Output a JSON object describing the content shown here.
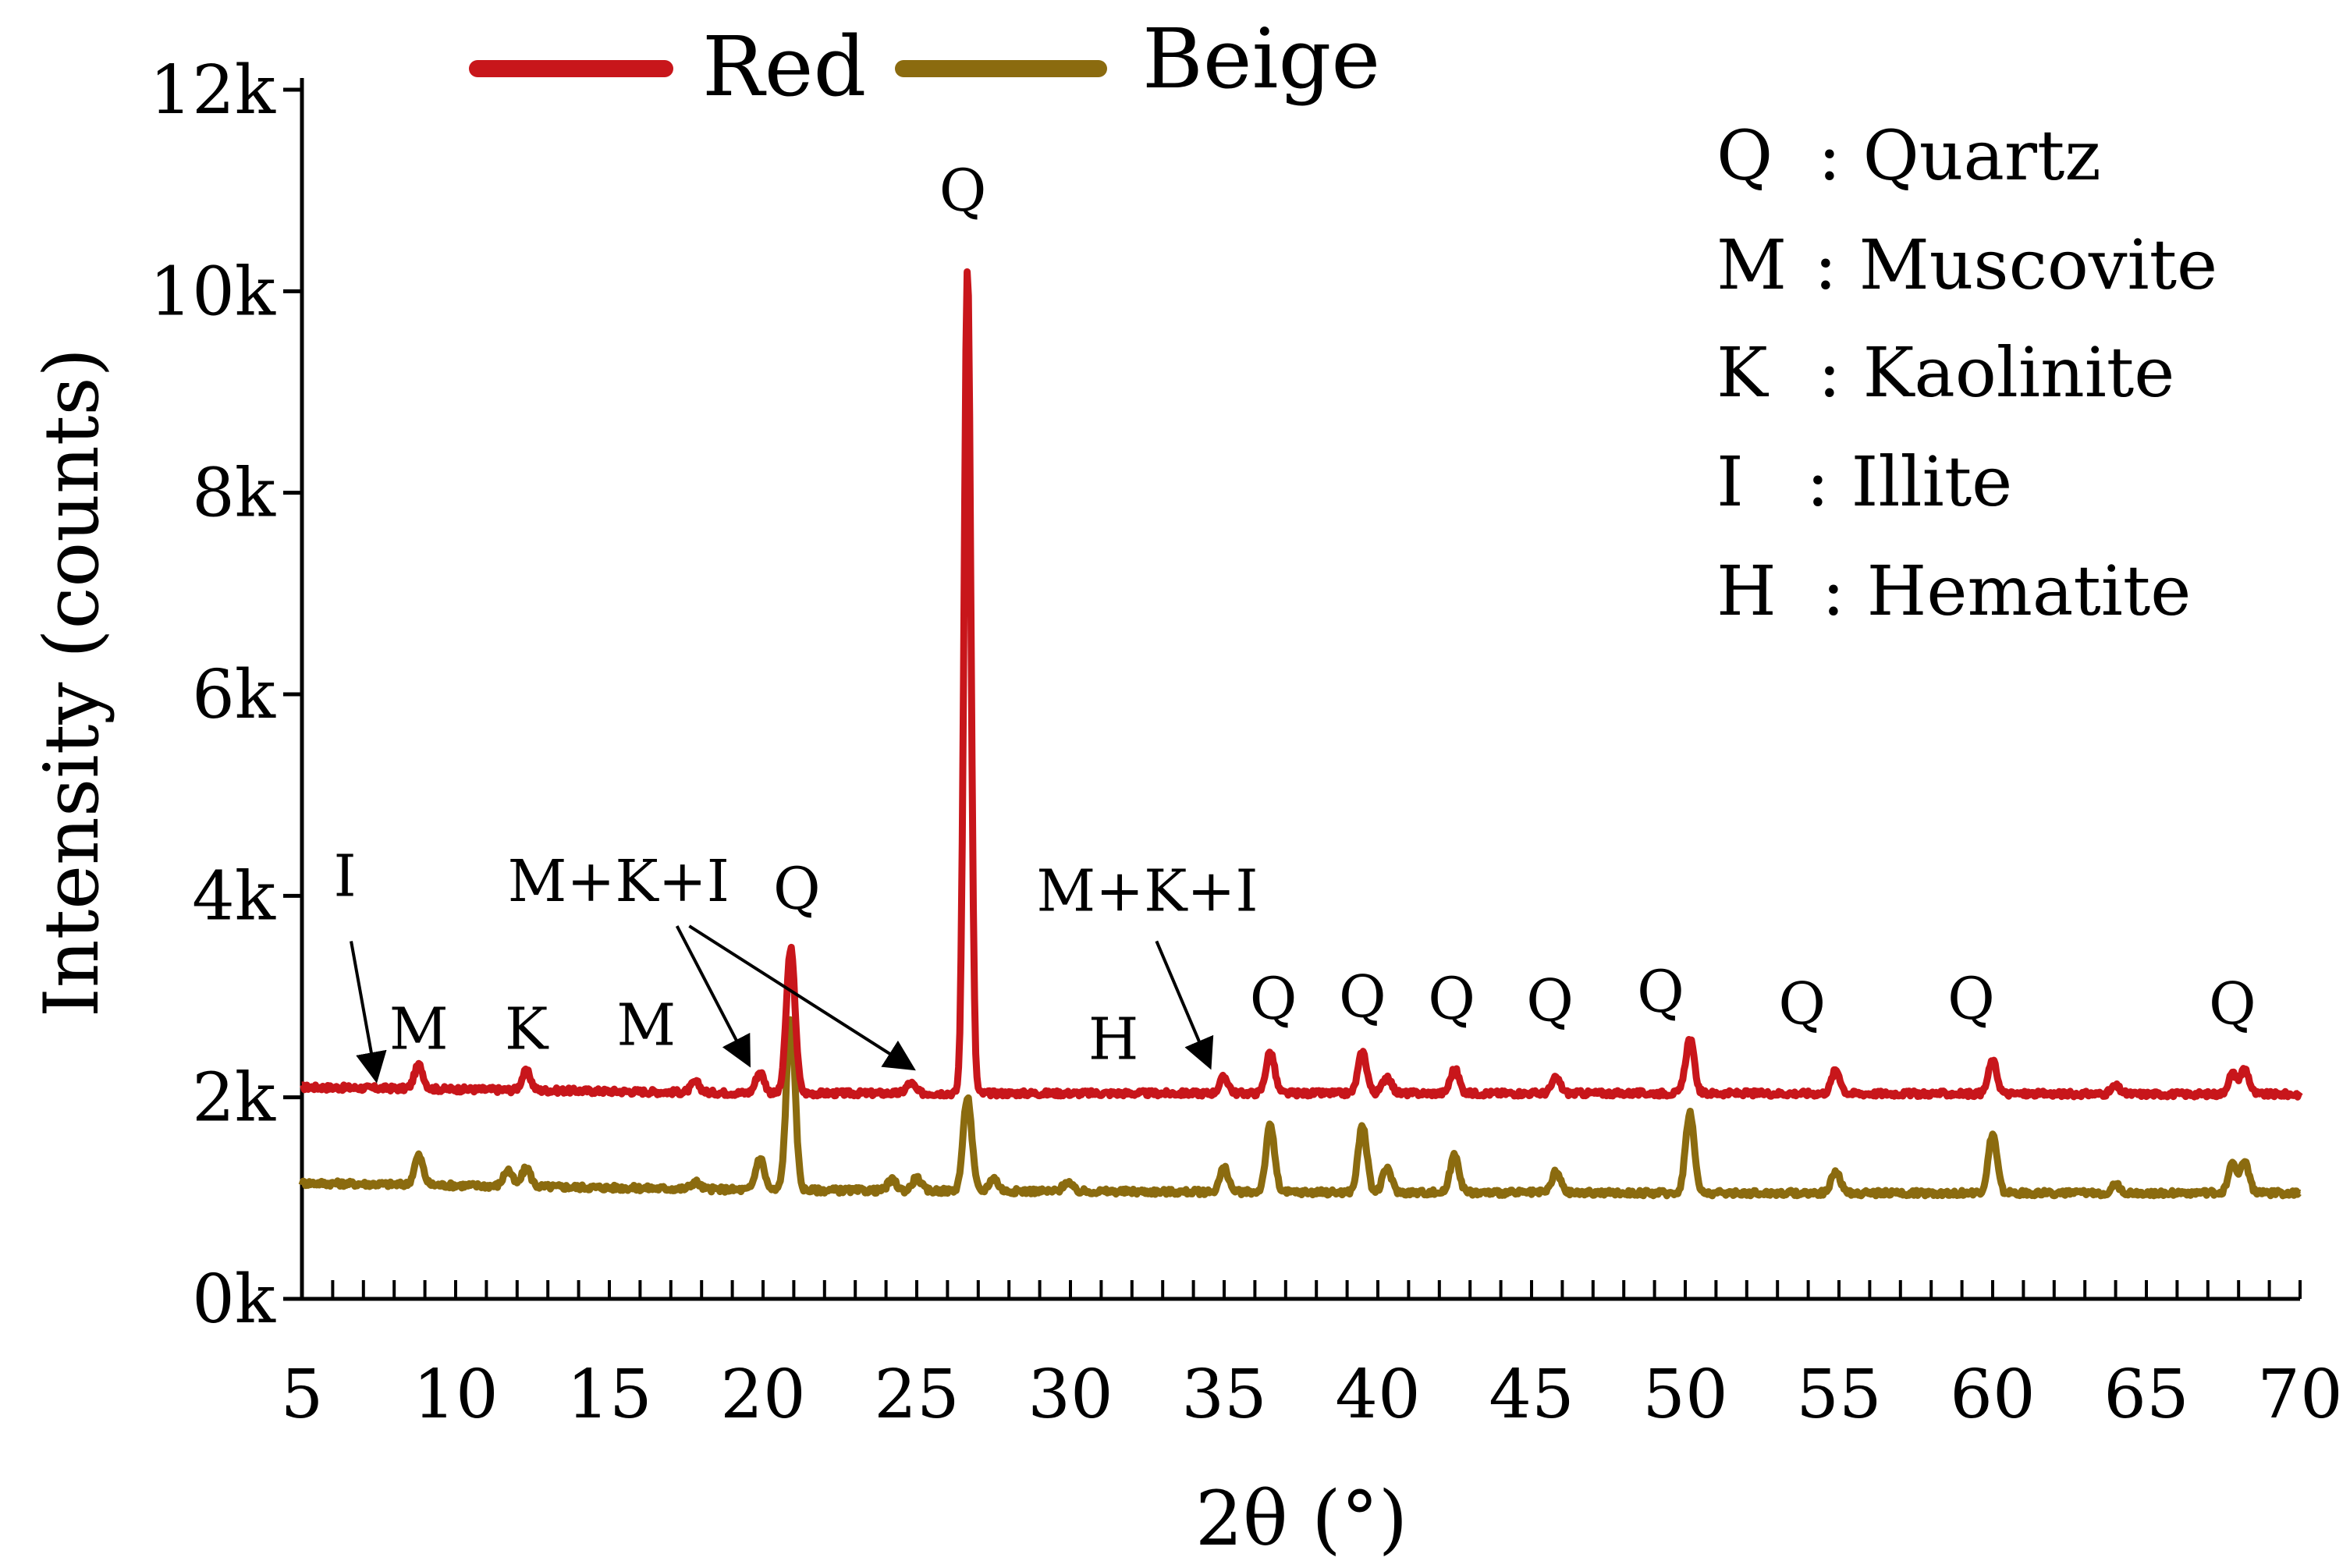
{
  "chart_data": {
    "type": "line",
    "title": "",
    "xlabel": "2θ (°)",
    "ylabel": "Intensity (counts)",
    "xlim": [
      5,
      70
    ],
    "ylim": [
      0,
      12000
    ],
    "x_ticks": [
      5,
      10,
      15,
      20,
      25,
      30,
      35,
      40,
      45,
      50,
      55,
      60,
      65,
      70
    ],
    "x_tick_labels": [
      "5",
      "10",
      "15",
      "20",
      "25",
      "30",
      "35",
      "40",
      "45",
      "50",
      "55",
      "60",
      "65",
      "70"
    ],
    "y_ticks": [
      0,
      2000,
      4000,
      6000,
      8000,
      10000,
      12000
    ],
    "y_tick_labels": [
      "0k",
      "2k",
      "4k",
      "6k",
      "8k",
      "10k",
      "12k"
    ],
    "legend": {
      "position": "top-center"
    },
    "series": [
      {
        "name": "Red",
        "color": "#c8161b",
        "baseline": [
          [
            5,
            2100
          ],
          [
            20,
            2040
          ],
          [
            35,
            2040
          ],
          [
            50,
            2040
          ],
          [
            70,
            2030
          ]
        ],
        "peaks": [
          {
            "x": 8.8,
            "y": 2320
          },
          {
            "x": 12.3,
            "y": 2260
          },
          {
            "x": 17.8,
            "y": 2150
          },
          {
            "x": 19.9,
            "y": 2250
          },
          {
            "x": 20.9,
            "y": 3480
          },
          {
            "x": 24.8,
            "y": 2140
          },
          {
            "x": 26.65,
            "y": 10250
          },
          {
            "x": 35.0,
            "y": 2200
          },
          {
            "x": 36.5,
            "y": 2450
          },
          {
            "x": 39.5,
            "y": 2450
          },
          {
            "x": 40.3,
            "y": 2210
          },
          {
            "x": 42.5,
            "y": 2280
          },
          {
            "x": 45.8,
            "y": 2190
          },
          {
            "x": 50.15,
            "y": 2580
          },
          {
            "x": 54.9,
            "y": 2270
          },
          {
            "x": 60.0,
            "y": 2360
          },
          {
            "x": 64.0,
            "y": 2110
          },
          {
            "x": 67.8,
            "y": 2230
          },
          {
            "x": 68.2,
            "y": 2280
          }
        ]
      },
      {
        "name": "Beige",
        "color": "#8b6b0f",
        "baseline": [
          [
            5,
            1150
          ],
          [
            20,
            1080
          ],
          [
            35,
            1060
          ],
          [
            50,
            1050
          ],
          [
            70,
            1050
          ]
        ],
        "peaks": [
          {
            "x": 8.8,
            "y": 1420
          },
          {
            "x": 11.7,
            "y": 1280
          },
          {
            "x": 12.3,
            "y": 1300
          },
          {
            "x": 17.8,
            "y": 1160
          },
          {
            "x": 19.9,
            "y": 1400
          },
          {
            "x": 20.9,
            "y": 2800
          },
          {
            "x": 24.2,
            "y": 1180
          },
          {
            "x": 25.0,
            "y": 1200
          },
          {
            "x": 26.65,
            "y": 2000
          },
          {
            "x": 27.5,
            "y": 1200
          },
          {
            "x": 29.9,
            "y": 1160
          },
          {
            "x": 35.0,
            "y": 1300
          },
          {
            "x": 36.5,
            "y": 1720
          },
          {
            "x": 39.5,
            "y": 1720
          },
          {
            "x": 40.3,
            "y": 1300
          },
          {
            "x": 42.5,
            "y": 1440
          },
          {
            "x": 45.8,
            "y": 1260
          },
          {
            "x": 50.15,
            "y": 1850
          },
          {
            "x": 54.9,
            "y": 1270
          },
          {
            "x": 60.0,
            "y": 1630
          },
          {
            "x": 64.0,
            "y": 1130
          },
          {
            "x": 67.8,
            "y": 1330
          },
          {
            "x": 68.2,
            "y": 1360
          }
        ]
      }
    ],
    "peak_labels": [
      {
        "text": "I",
        "x": 6.4,
        "y": 4000
      },
      {
        "text": "M",
        "x": 8.8,
        "y": 2480
      },
      {
        "text": "K",
        "x": 12.3,
        "y": 2480
      },
      {
        "text": "M",
        "x": 16.2,
        "y": 2520
      },
      {
        "text": "M+K+I",
        "x": 15.3,
        "y": 3950
      },
      {
        "text": "Q",
        "x": 21.1,
        "y": 3870
      },
      {
        "text": "Q",
        "x": 26.5,
        "y": 10800
      },
      {
        "text": "M+K+I",
        "x": 32.5,
        "y": 3850
      },
      {
        "text": "H",
        "x": 31.4,
        "y": 2380
      },
      {
        "text": "Q",
        "x": 36.6,
        "y": 2780
      },
      {
        "text": "Q",
        "x": 39.5,
        "y": 2800
      },
      {
        "text": "Q",
        "x": 42.4,
        "y": 2780
      },
      {
        "text": "Q",
        "x": 45.6,
        "y": 2760
      },
      {
        "text": "Q",
        "x": 49.2,
        "y": 2850
      },
      {
        "text": "Q",
        "x": 53.8,
        "y": 2730
      },
      {
        "text": "Q",
        "x": 59.3,
        "y": 2780
      },
      {
        "text": "Q",
        "x": 67.8,
        "y": 2730
      }
    ],
    "annotation_arrows": [
      {
        "label": "I",
        "from": [
          6.6,
          3550
        ],
        "to": [
          7.4,
          2200
        ]
      },
      {
        "label": "M+K+I",
        "from": [
          17.2,
          3700
        ],
        "to": [
          19.5,
          2350
        ]
      },
      {
        "label": "M+K+I",
        "from": [
          17.6,
          3700
        ],
        "to": [
          24.8,
          2300
        ]
      },
      {
        "label": "M+K+I",
        "from": [
          32.8,
          3550
        ],
        "to": [
          34.5,
          2330
        ]
      }
    ],
    "key": [
      {
        "symbol": "Q",
        "name": ": Quartz"
      },
      {
        "symbol": "M",
        "name": ": Muscovite"
      },
      {
        "symbol": "K",
        "name": ": Kaolinite"
      },
      {
        "symbol": "I",
        "name": ": Illite"
      },
      {
        "symbol": "H",
        "name": ": Hematite"
      }
    ]
  }
}
